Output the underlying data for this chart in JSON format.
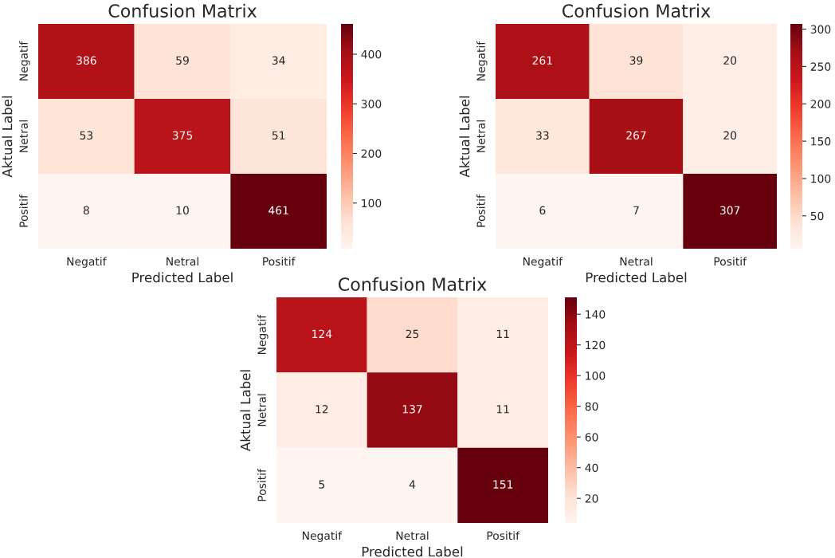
{
  "chart_data": [
    {
      "type": "heatmap",
      "title": "Confusion Matrix",
      "xlabel": "Predicted Label",
      "ylabel": "Aktual Label",
      "categories": [
        "Negatif",
        "Netral",
        "Positif"
      ],
      "y_categories": [
        "Negatif",
        "Netral",
        "Positif"
      ],
      "cells": [
        [
          386,
          59,
          34
        ],
        [
          53,
          375,
          51
        ],
        [
          8,
          10,
          461
        ]
      ],
      "clim": [
        8,
        461
      ],
      "cticks": [
        100,
        200,
        300,
        400
      ],
      "data_labels": true
    },
    {
      "type": "heatmap",
      "title": "Confusion Matrix",
      "xlabel": "Predicted Label",
      "ylabel": "Aktual Label",
      "categories": [
        "Negatif",
        "Netral",
        "Positif"
      ],
      "y_categories": [
        "Negatif",
        "Netral",
        "Positif"
      ],
      "cells": [
        [
          261,
          39,
          20
        ],
        [
          33,
          267,
          20
        ],
        [
          6,
          7,
          307
        ]
      ],
      "clim": [
        6,
        307
      ],
      "cticks": [
        50,
        100,
        150,
        200,
        250,
        300
      ],
      "data_labels": true
    },
    {
      "type": "heatmap",
      "title": "Confusion Matrix",
      "xlabel": "Predicted Label",
      "ylabel": "Aktual Label",
      "categories": [
        "Negatif",
        "Netral",
        "Positif"
      ],
      "y_categories": [
        "Negatif",
        "Netral",
        "Positif"
      ],
      "cells": [
        [
          124,
          25,
          11
        ],
        [
          12,
          137,
          11
        ],
        [
          5,
          4,
          151
        ]
      ],
      "clim": [
        4,
        151
      ],
      "cticks": [
        20,
        40,
        60,
        80,
        100,
        120,
        140
      ],
      "data_labels": true
    }
  ]
}
